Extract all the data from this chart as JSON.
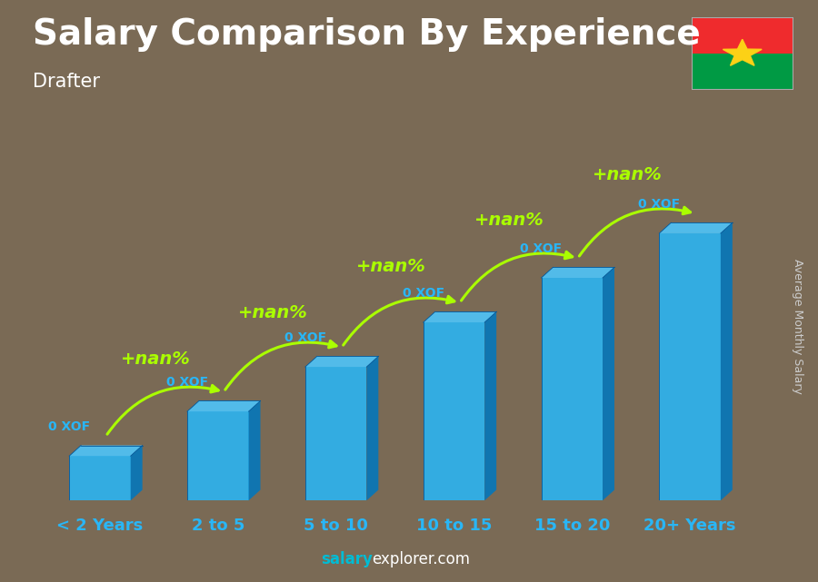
{
  "title": "Salary Comparison By Experience",
  "subtitle": "Drafter",
  "categories": [
    "< 2 Years",
    "2 to 5",
    "5 to 10",
    "10 to 15",
    "15 to 20",
    "20+ Years"
  ],
  "values": [
    1,
    2,
    3,
    4,
    5,
    6
  ],
  "salary_labels": [
    "0 XOF",
    "0 XOF",
    "0 XOF",
    "0 XOF",
    "0 XOF",
    "0 XOF"
  ],
  "pct_labels": [
    "+nan%",
    "+nan%",
    "+nan%",
    "+nan%",
    "+nan%"
  ],
  "ylabel": "Average Monthly Salary",
  "footer_salary": "salary",
  "footer_explorer": "explorer.com",
  "title_fontsize": 28,
  "subtitle_fontsize": 15,
  "cat_fontsize": 13,
  "label_fontsize": 10,
  "pct_fontsize": 14,
  "ylabel_fontsize": 9,
  "footer_fontsize": 12,
  "bar_front": "#29B6F6",
  "bar_top": "#4FC3F7",
  "bar_side": "#0277BD",
  "bar_edge": "#01579B",
  "label_color": "#29B6F6",
  "pct_color": "#AAFF00",
  "arrow_color": "#AAFF00",
  "title_color": "#FFFFFF",
  "subtitle_color": "#FFFFFF",
  "ylabel_color": "#CCCCCC",
  "cat_color": "#29B6F6",
  "footer_salary_color": "#00BCD4",
  "footer_explorer_color": "#FFFFFF",
  "bg_color": "#7A6A55",
  "flag_top": "#EF2B2D",
  "flag_bottom": "#009A44",
  "flag_star": "#FCD116"
}
